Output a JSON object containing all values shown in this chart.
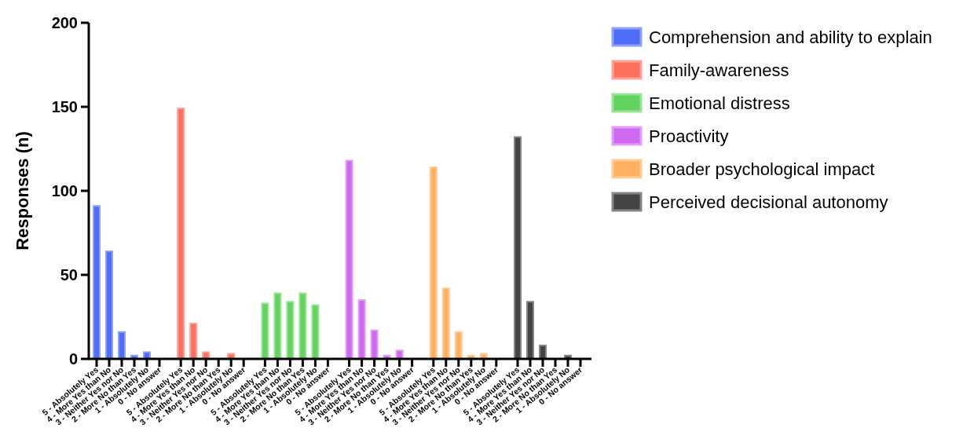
{
  "chart_data": {
    "type": "bar",
    "ylabel": "Responses (n)",
    "ylim": [
      0,
      200
    ],
    "yticks": [
      0,
      50,
      100,
      150,
      200
    ],
    "legend": "top right",
    "grid": false,
    "categories": [
      "5 - Absolutely Yes",
      "4 - More Yes than No",
      "3 - Neither Yes nor No",
      "2 - More No than Yes",
      "1 - Absolutely No",
      "0 - No answer",
      "5 - Absolutely Yes",
      "4 - More Yes than No",
      "3 - Neither Yes nor No",
      "2 - More No than Yes",
      "1 - Absolutely No",
      "0 - No answer",
      "5 - Absolutely Yes",
      "4 - More Yes than No",
      "3 - Neither Yes nor No",
      "2 - More No than Yes",
      "1 - Absolutely No",
      "0 - No answer",
      "5 - Absolutely Yes",
      "4 - More Yes than No",
      "3 - Neither Yes nor No",
      "2 - More No than Yes",
      "1 - Absolutely No",
      "0 - No answer",
      "5 - Absolutely Yes",
      "4 - More Yes than No",
      "3 - Neither Yes nor No",
      "2 - More No than Yes",
      "1 - Absolutely No",
      "0 - No answer",
      "5 - Absolutely Yes",
      "4 - More Yes than No",
      "3 - Neither Yes nor No",
      "2 - More No than Yes",
      "1 - Absolutely No",
      "0 - No answer"
    ],
    "series": [
      {
        "name": "Comprehension and ability to explain",
        "color": "#4f6ef7",
        "values": [
          91,
          64,
          16,
          2,
          4,
          0,
          null,
          null,
          null,
          null,
          null,
          null,
          null,
          null,
          null,
          null,
          null,
          null,
          null,
          null,
          null,
          null,
          null,
          null,
          null,
          null,
          null,
          null,
          null,
          null,
          null,
          null,
          null,
          null,
          null,
          null
        ]
      },
      {
        "name": "Family-awareness",
        "color": "#ff6f5e",
        "values": [
          null,
          null,
          null,
          null,
          null,
          null,
          149,
          21,
          4,
          0,
          3,
          0,
          null,
          null,
          null,
          null,
          null,
          null,
          null,
          null,
          null,
          null,
          null,
          null,
          null,
          null,
          null,
          null,
          null,
          null,
          null,
          null,
          null,
          null,
          null,
          null
        ]
      },
      {
        "name": "Emotional distress",
        "color": "#62d35f",
        "values": [
          null,
          null,
          null,
          null,
          null,
          null,
          null,
          null,
          null,
          null,
          null,
          null,
          33,
          39,
          34,
          39,
          32,
          0,
          null,
          null,
          null,
          null,
          null,
          null,
          null,
          null,
          null,
          null,
          null,
          null,
          null,
          null,
          null,
          null,
          null,
          null
        ]
      },
      {
        "name": "Proactivity",
        "color": "#cf6af0",
        "values": [
          null,
          null,
          null,
          null,
          null,
          null,
          null,
          null,
          null,
          null,
          null,
          null,
          null,
          null,
          null,
          null,
          null,
          null,
          118,
          35,
          17,
          2,
          5,
          0,
          null,
          null,
          null,
          null,
          null,
          null,
          null,
          null,
          null,
          null,
          null,
          null
        ]
      },
      {
        "name": "Broader psychological impact",
        "color": "#ffb060",
        "values": [
          null,
          null,
          null,
          null,
          null,
          null,
          null,
          null,
          null,
          null,
          null,
          null,
          null,
          null,
          null,
          null,
          null,
          null,
          null,
          null,
          null,
          null,
          null,
          null,
          114,
          42,
          16,
          2,
          3,
          0,
          null,
          null,
          null,
          null,
          null,
          null
        ]
      },
      {
        "name": "Perceived decisional autonomy",
        "color": "#444444",
        "values": [
          null,
          null,
          null,
          null,
          null,
          null,
          null,
          null,
          null,
          null,
          null,
          null,
          null,
          null,
          null,
          null,
          null,
          null,
          null,
          null,
          null,
          null,
          null,
          null,
          null,
          null,
          null,
          null,
          null,
          null,
          132,
          34,
          8,
          0,
          2,
          0
        ]
      }
    ]
  }
}
